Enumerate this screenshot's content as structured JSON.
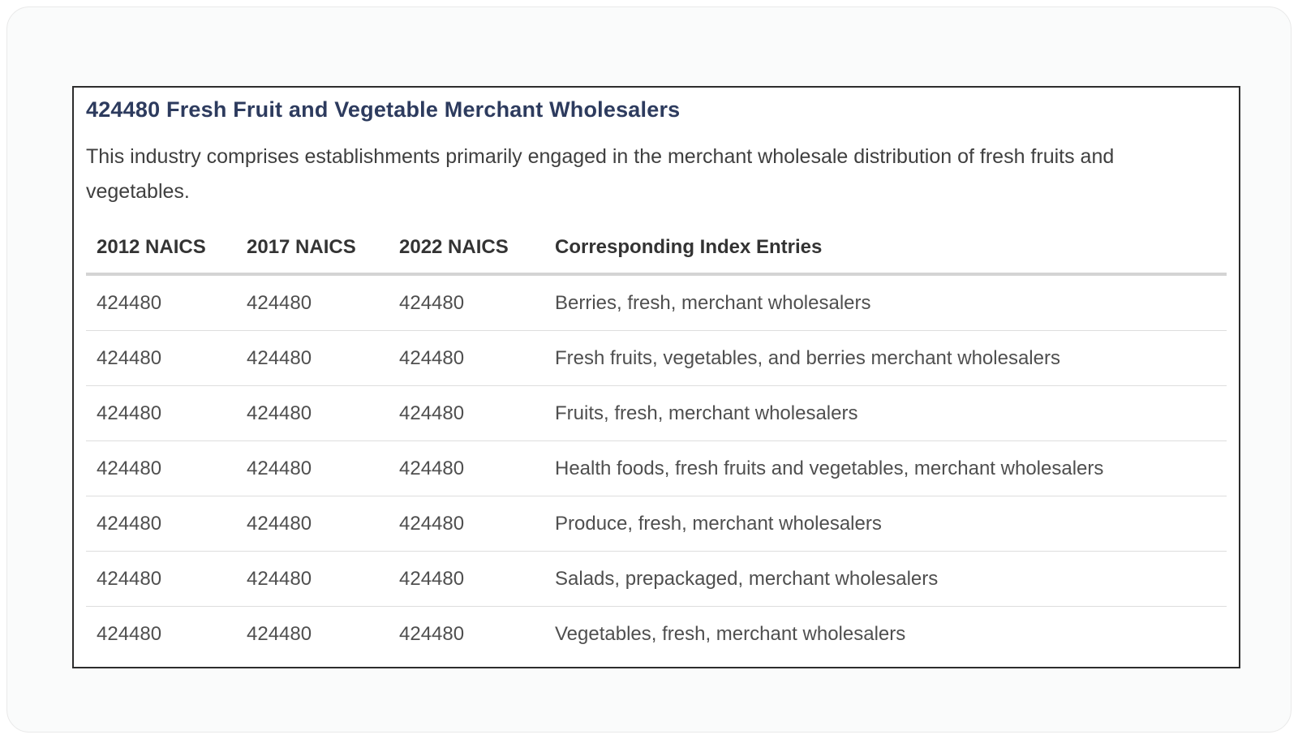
{
  "panel": {
    "title": "424480 Fresh Fruit and Vegetable Merchant Wholesalers",
    "description": "This industry comprises establishments primarily engaged in the merchant wholesale distribution of fresh fruits and vegetables.",
    "table": {
      "headers": [
        "2012 NAICS",
        "2017 NAICS",
        "2022 NAICS",
        "Corresponding Index Entries"
      ],
      "rows": [
        [
          "424480",
          "424480",
          "424480",
          "Berries, fresh, merchant wholesalers"
        ],
        [
          "424480",
          "424480",
          "424480",
          "Fresh fruits, vegetables, and berries merchant wholesalers"
        ],
        [
          "424480",
          "424480",
          "424480",
          "Fruits, fresh, merchant wholesalers"
        ],
        [
          "424480",
          "424480",
          "424480",
          "Health foods, fresh fruits and vegetables, merchant wholesalers"
        ],
        [
          "424480",
          "424480",
          "424480",
          "Produce, fresh, merchant wholesalers"
        ],
        [
          "424480",
          "424480",
          "424480",
          "Salads, prepackaged, merchant wholesalers"
        ],
        [
          "424480",
          "424480",
          "424480",
          "Vegetables, fresh, merchant wholesalers"
        ]
      ]
    }
  },
  "colors": {
    "title_text": "#2d3b5e",
    "body_text": "#3f3f3f",
    "header_text": "#333333",
    "cell_text": "#4f4f4f",
    "header_rule": "#d4d4d4",
    "row_divider": "#dedede",
    "panel_border": "#2d2d2d",
    "card_background": "#fafbfb"
  }
}
